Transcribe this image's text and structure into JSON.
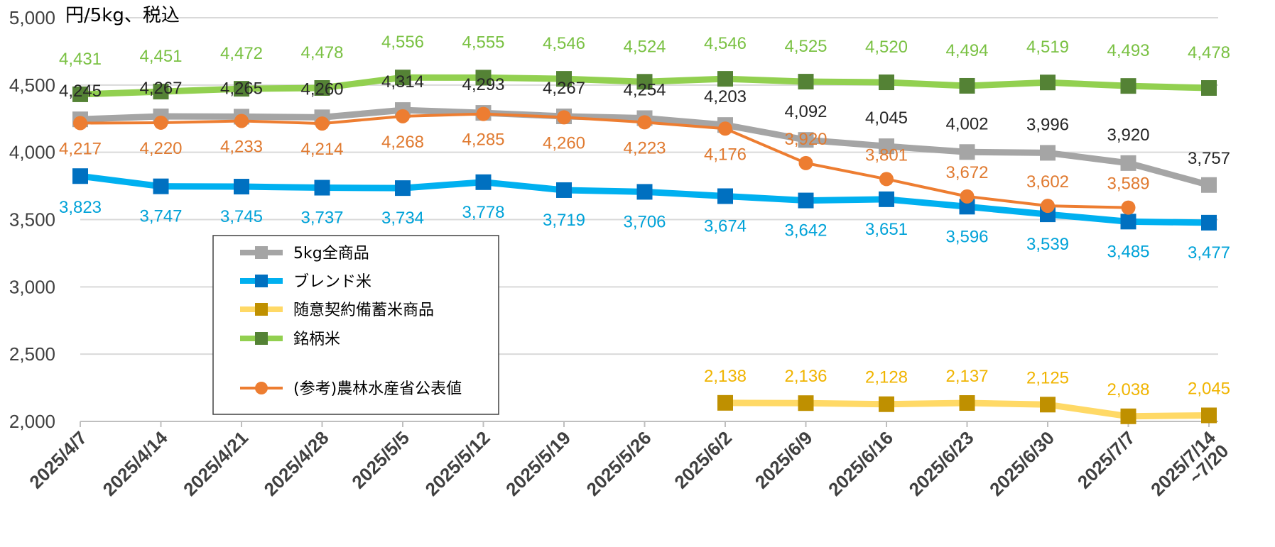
{
  "chart_data": {
    "type": "line",
    "unit_label": "円/5kg、税込",
    "ylim": [
      2000,
      5000
    ],
    "yticks": [
      2000,
      2500,
      3000,
      3500,
      4000,
      4500,
      5000
    ],
    "ytick_labels": [
      "2,000",
      "2,500",
      "3,000",
      "3,500",
      "4,000",
      "4,500",
      "5,000"
    ],
    "grid": true,
    "legend_position": "left-bottom inside plot",
    "categories": [
      [
        "2025/4/7"
      ],
      [
        "2025/4/14"
      ],
      [
        "2025/4/21"
      ],
      [
        "2025/4/28"
      ],
      [
        "2025/5/5"
      ],
      [
        "2025/5/12"
      ],
      [
        "2025/5/19"
      ],
      [
        "2025/5/26"
      ],
      [
        "2025/6/2"
      ],
      [
        "2025/6/9"
      ],
      [
        "2025/6/16"
      ],
      [
        "2025/6/23"
      ],
      [
        "2025/6/30"
      ],
      [
        "2025/7/7"
      ],
      [
        "2025/7/14",
        "~7/20"
      ]
    ],
    "series": [
      {
        "name": "5kg全商品",
        "color": "#a5a5a5",
        "label_color": "#262626",
        "marker": "square",
        "values": [
          4245,
          4267,
          4265,
          4260,
          4314,
          4293,
          4267,
          4254,
          4203,
          4092,
          4045,
          4002,
          3996,
          3920,
          3757
        ],
        "labels": [
          "4,245",
          "4,267",
          "4,265",
          "4,260",
          "4,314",
          "4,293",
          "4,267",
          "4,254",
          "4,203",
          "4,092",
          "4,045",
          "4,002",
          "3,996",
          "3,920",
          "3,757"
        ]
      },
      {
        "name": "ブレンド米",
        "color": "#00b0f0",
        "marker_color": "#0070c0",
        "label_color": "#00a2d8",
        "marker": "square",
        "values": [
          3823,
          3747,
          3745,
          3737,
          3734,
          3778,
          3719,
          3706,
          3674,
          3642,
          3651,
          3596,
          3539,
          3485,
          3477
        ],
        "labels": [
          "3,823",
          "3,747",
          "3,745",
          "3,737",
          "3,734",
          "3,778",
          "3,719",
          "3,706",
          "3,674",
          "3,642",
          "3,651",
          "3,596",
          "3,539",
          "3,485",
          "3,477"
        ]
      },
      {
        "name": "随意契約備蓄米商品",
        "color": "#ffd966",
        "marker_color": "#bf9000",
        "label_color": "#f0b400",
        "marker": "square",
        "values": [
          null,
          null,
          null,
          null,
          null,
          null,
          null,
          null,
          2138,
          2136,
          2128,
          2137,
          2125,
          2038,
          2045
        ],
        "labels": [
          null,
          null,
          null,
          null,
          null,
          null,
          null,
          null,
          "2,138",
          "2,136",
          "2,128",
          "2,137",
          "2,125",
          "2,038",
          "2,045"
        ]
      },
      {
        "name": "銘柄米",
        "color": "#92d050",
        "marker_color": "#548235",
        "label_color": "#7ac143",
        "marker": "square",
        "values": [
          4431,
          4451,
          4472,
          4478,
          4556,
          4555,
          4546,
          4524,
          4546,
          4525,
          4520,
          4494,
          4519,
          4493,
          4478
        ],
        "labels": [
          "4,431",
          "4,451",
          "4,472",
          "4,478",
          "4,556",
          "4,555",
          "4,546",
          "4,524",
          "4,546",
          "4,525",
          "4,520",
          "4,494",
          "4,519",
          "4,493",
          "4,478"
        ]
      },
      {
        "name": "(参考)農林水産省公表値",
        "color": "#ed7d31",
        "label_color": "#e07a30",
        "marker": "circle",
        "values": [
          4217,
          4220,
          4233,
          4214,
          4268,
          4285,
          4260,
          4223,
          4176,
          3920,
          3801,
          3672,
          3602,
          3589,
          null
        ],
        "labels": [
          "4,217",
          "4,220",
          "4,233",
          "4,214",
          "4,268",
          "4,285",
          "4,260",
          "4,223",
          "4,176",
          "3,920",
          "3,801",
          "3,672",
          "3,602",
          "3,589",
          null
        ]
      }
    ]
  }
}
